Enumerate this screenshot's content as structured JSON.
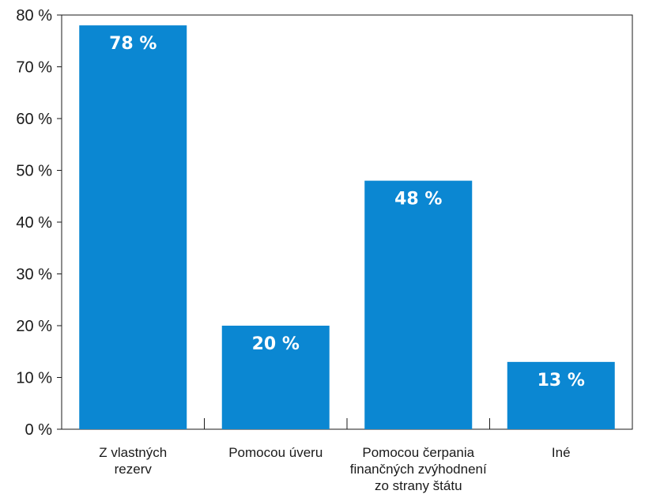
{
  "chart_data": {
    "type": "bar",
    "categories": [
      [
        "Z vlastných",
        "rezerv"
      ],
      [
        "Pomocou úveru"
      ],
      [
        "Pomocou čerpania",
        "finančných zvýhodnení",
        "zo strany štátu"
      ],
      [
        "Iné"
      ]
    ],
    "values": [
      78,
      20,
      48,
      13
    ],
    "data_labels": [
      "78 %",
      "20 %",
      "48 %",
      "13 %"
    ],
    "y_ticks": [
      {
        "value": 0,
        "label": "0 %"
      },
      {
        "value": 10,
        "label": "10 %"
      },
      {
        "value": 20,
        "label": "20 %"
      },
      {
        "value": 30,
        "label": "30 %"
      },
      {
        "value": 40,
        "label": "40 %"
      },
      {
        "value": 50,
        "label": "50 %"
      },
      {
        "value": 60,
        "label": "60 %"
      },
      {
        "value": 70,
        "label": "70 %"
      },
      {
        "value": 80,
        "label": "80 %"
      }
    ],
    "ylim": [
      0,
      80
    ],
    "grid": false,
    "bar_color": "#0b87d2",
    "title": "",
    "xlabel": "",
    "ylabel": ""
  }
}
